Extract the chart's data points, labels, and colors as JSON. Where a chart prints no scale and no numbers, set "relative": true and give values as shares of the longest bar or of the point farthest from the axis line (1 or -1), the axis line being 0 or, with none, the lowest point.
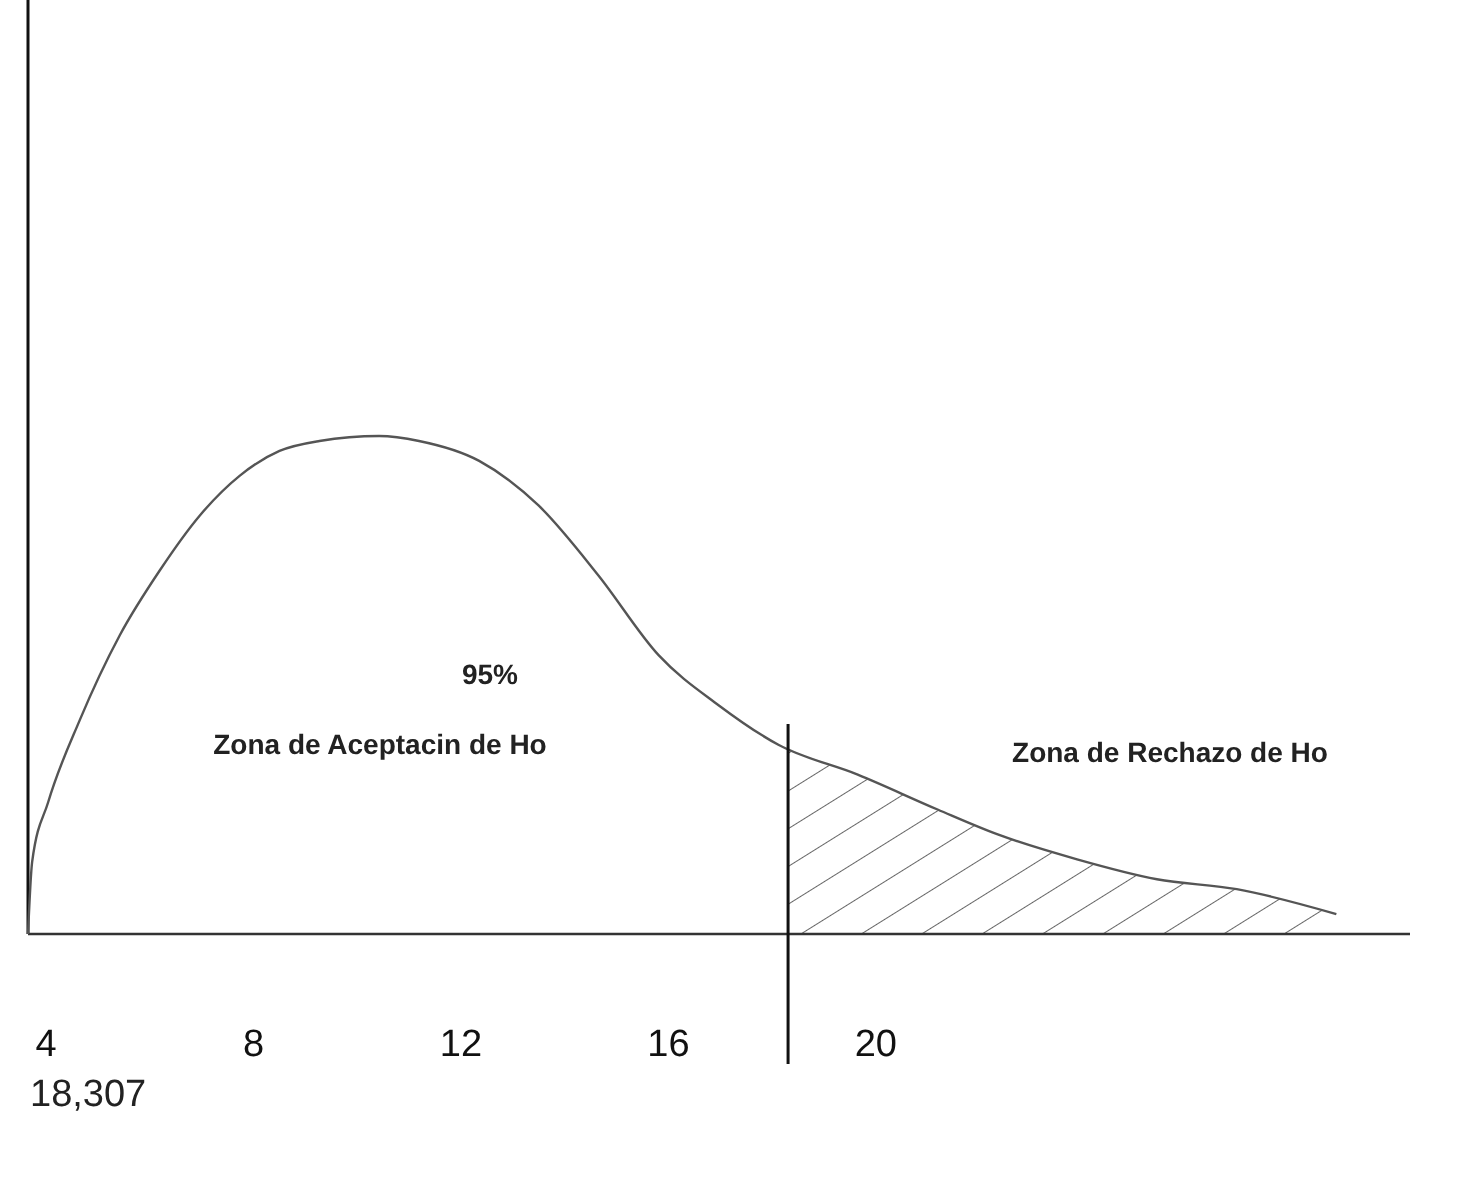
{
  "chart_data": {
    "type": "line",
    "relative": true,
    "color": "#555555",
    "x": [
      3.65,
      3.73,
      4.04,
      4.65,
      5.42,
      6.19,
      6.96,
      7.73,
      8.5,
      9.27,
      10.42,
      11.19,
      12.35,
      13.5,
      14.65,
      15.81,
      16.96,
      18.12,
      19.65,
      21.19,
      22.35,
      23.88,
      25.42,
      26.96,
      28.88
    ],
    "values": [
      0,
      0.145,
      0.265,
      0.43,
      0.6,
      0.73,
      0.84,
      0.92,
      0.97,
      0.99,
      1,
      0.99,
      0.95,
      0.86,
      0.72,
      0.56,
      0.46,
      0.38,
      0.32,
      0.25,
      0.2,
      0.15,
      0.11,
      0.09,
      0.04
    ],
    "xlim": [
      3.65,
      30.3
    ],
    "xticks": [
      4,
      8,
      12,
      16,
      20
    ],
    "ref_lines": [
      {
        "axis": "x",
        "value": 18.307,
        "color": "#111111"
      }
    ],
    "bands": [
      {
        "axis": "x",
        "from": 18.307,
        "to": 28.88,
        "color": "#666666"
      }
    ],
    "annotations": [
      "95%",
      "Zona de Aceptacin de Ho",
      "Zona de Rechazo de Ho",
      "18,307"
    ],
    "grid": false,
    "marker": "none",
    "line_style": "solid"
  }
}
